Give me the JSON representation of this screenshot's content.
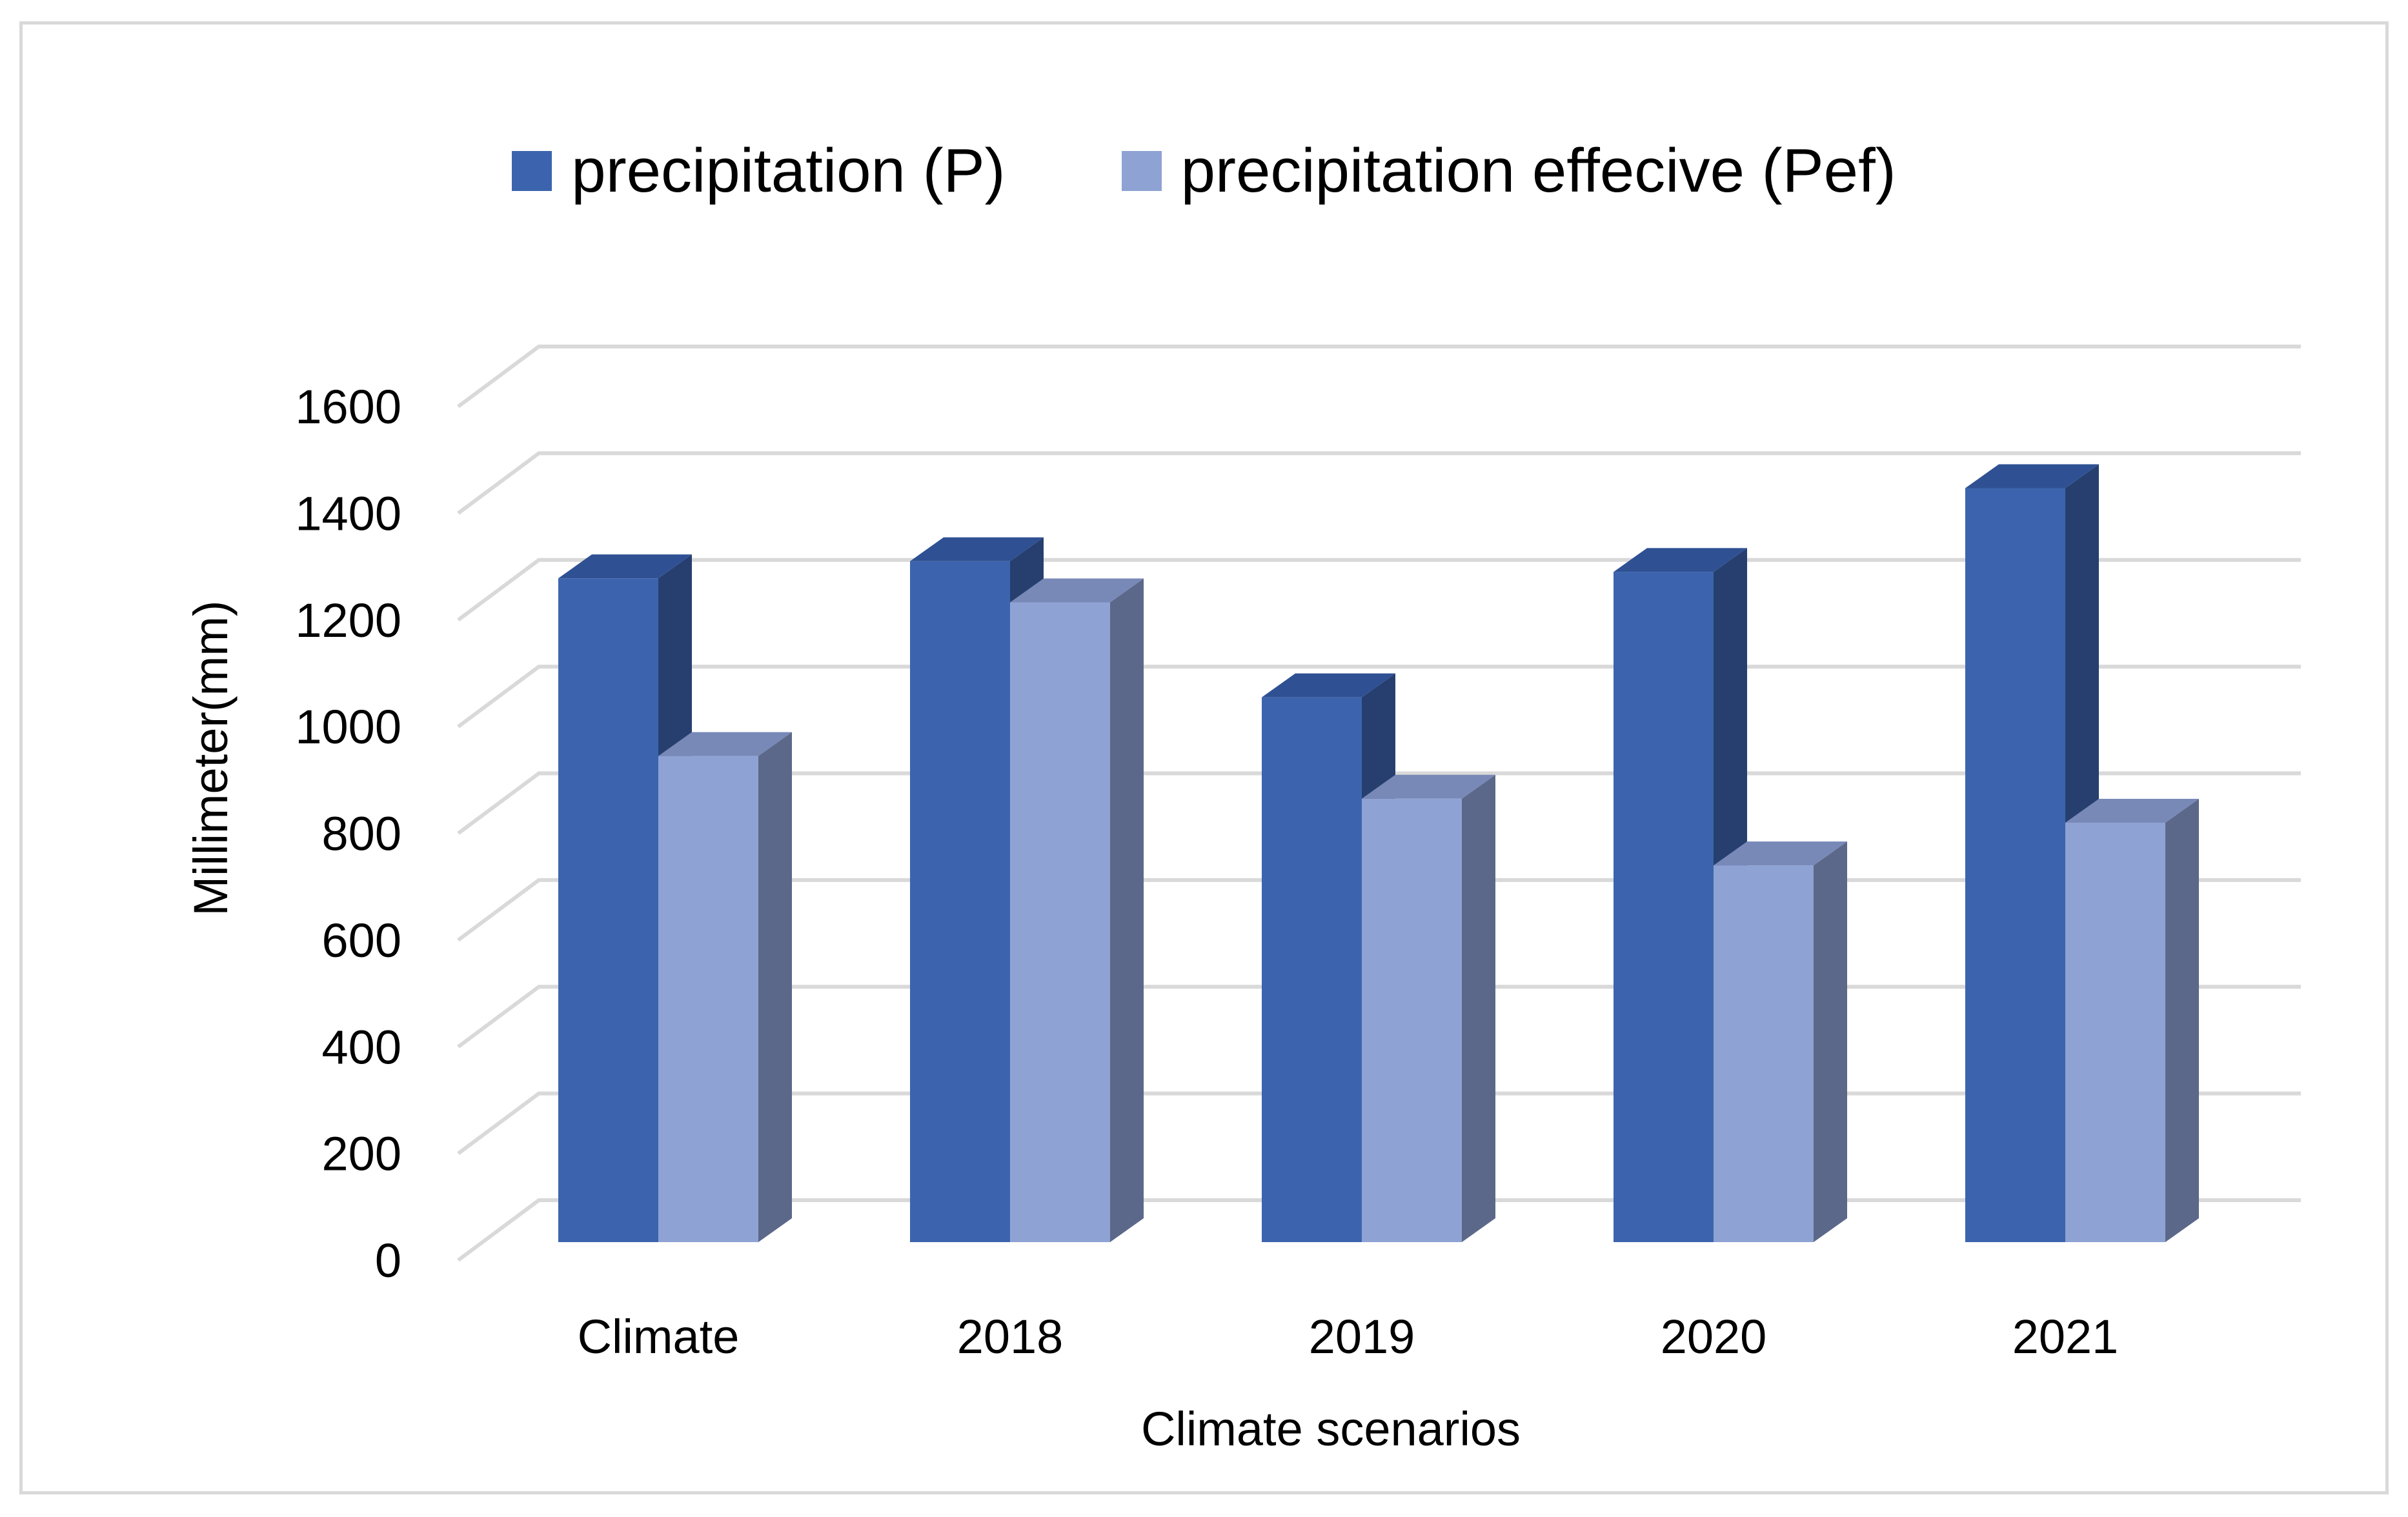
{
  "chart_data": {
    "type": "bar",
    "style": "3d-clustered-column",
    "title": "",
    "xlabel": "Climate scenarios",
    "ylabel": "Millimeter(mm)",
    "ylim": [
      0,
      1600
    ],
    "yticks": [
      "0",
      "200",
      "400",
      "600",
      "800",
      "1000",
      "1200",
      "1400",
      "1600"
    ],
    "ytick_values": [
      0,
      200,
      400,
      600,
      800,
      1000,
      1200,
      1400,
      1600
    ],
    "grid": true,
    "legend_position": "top-center",
    "categories": [
      "Climate",
      "2018",
      "2019",
      "2020",
      "2021"
    ],
    "series": [
      {
        "name": "precipitation (P)",
        "color": "#3c64ae",
        "side_color": "#263f6f",
        "top_color": "#2f5193",
        "values": [
          1278,
          1310,
          1055,
          1290,
          1447
        ]
      },
      {
        "name": "precipitation effecive (Pef)",
        "color": "#8fa2d4",
        "side_color": "#5b6889",
        "top_color": "#7889b8",
        "values": [
          945,
          1233,
          865,
          740,
          820
        ]
      }
    ]
  },
  "colors": {
    "grid": "#d9d9d9",
    "frame": "#d9d9d9",
    "background": "#ffffff"
  }
}
